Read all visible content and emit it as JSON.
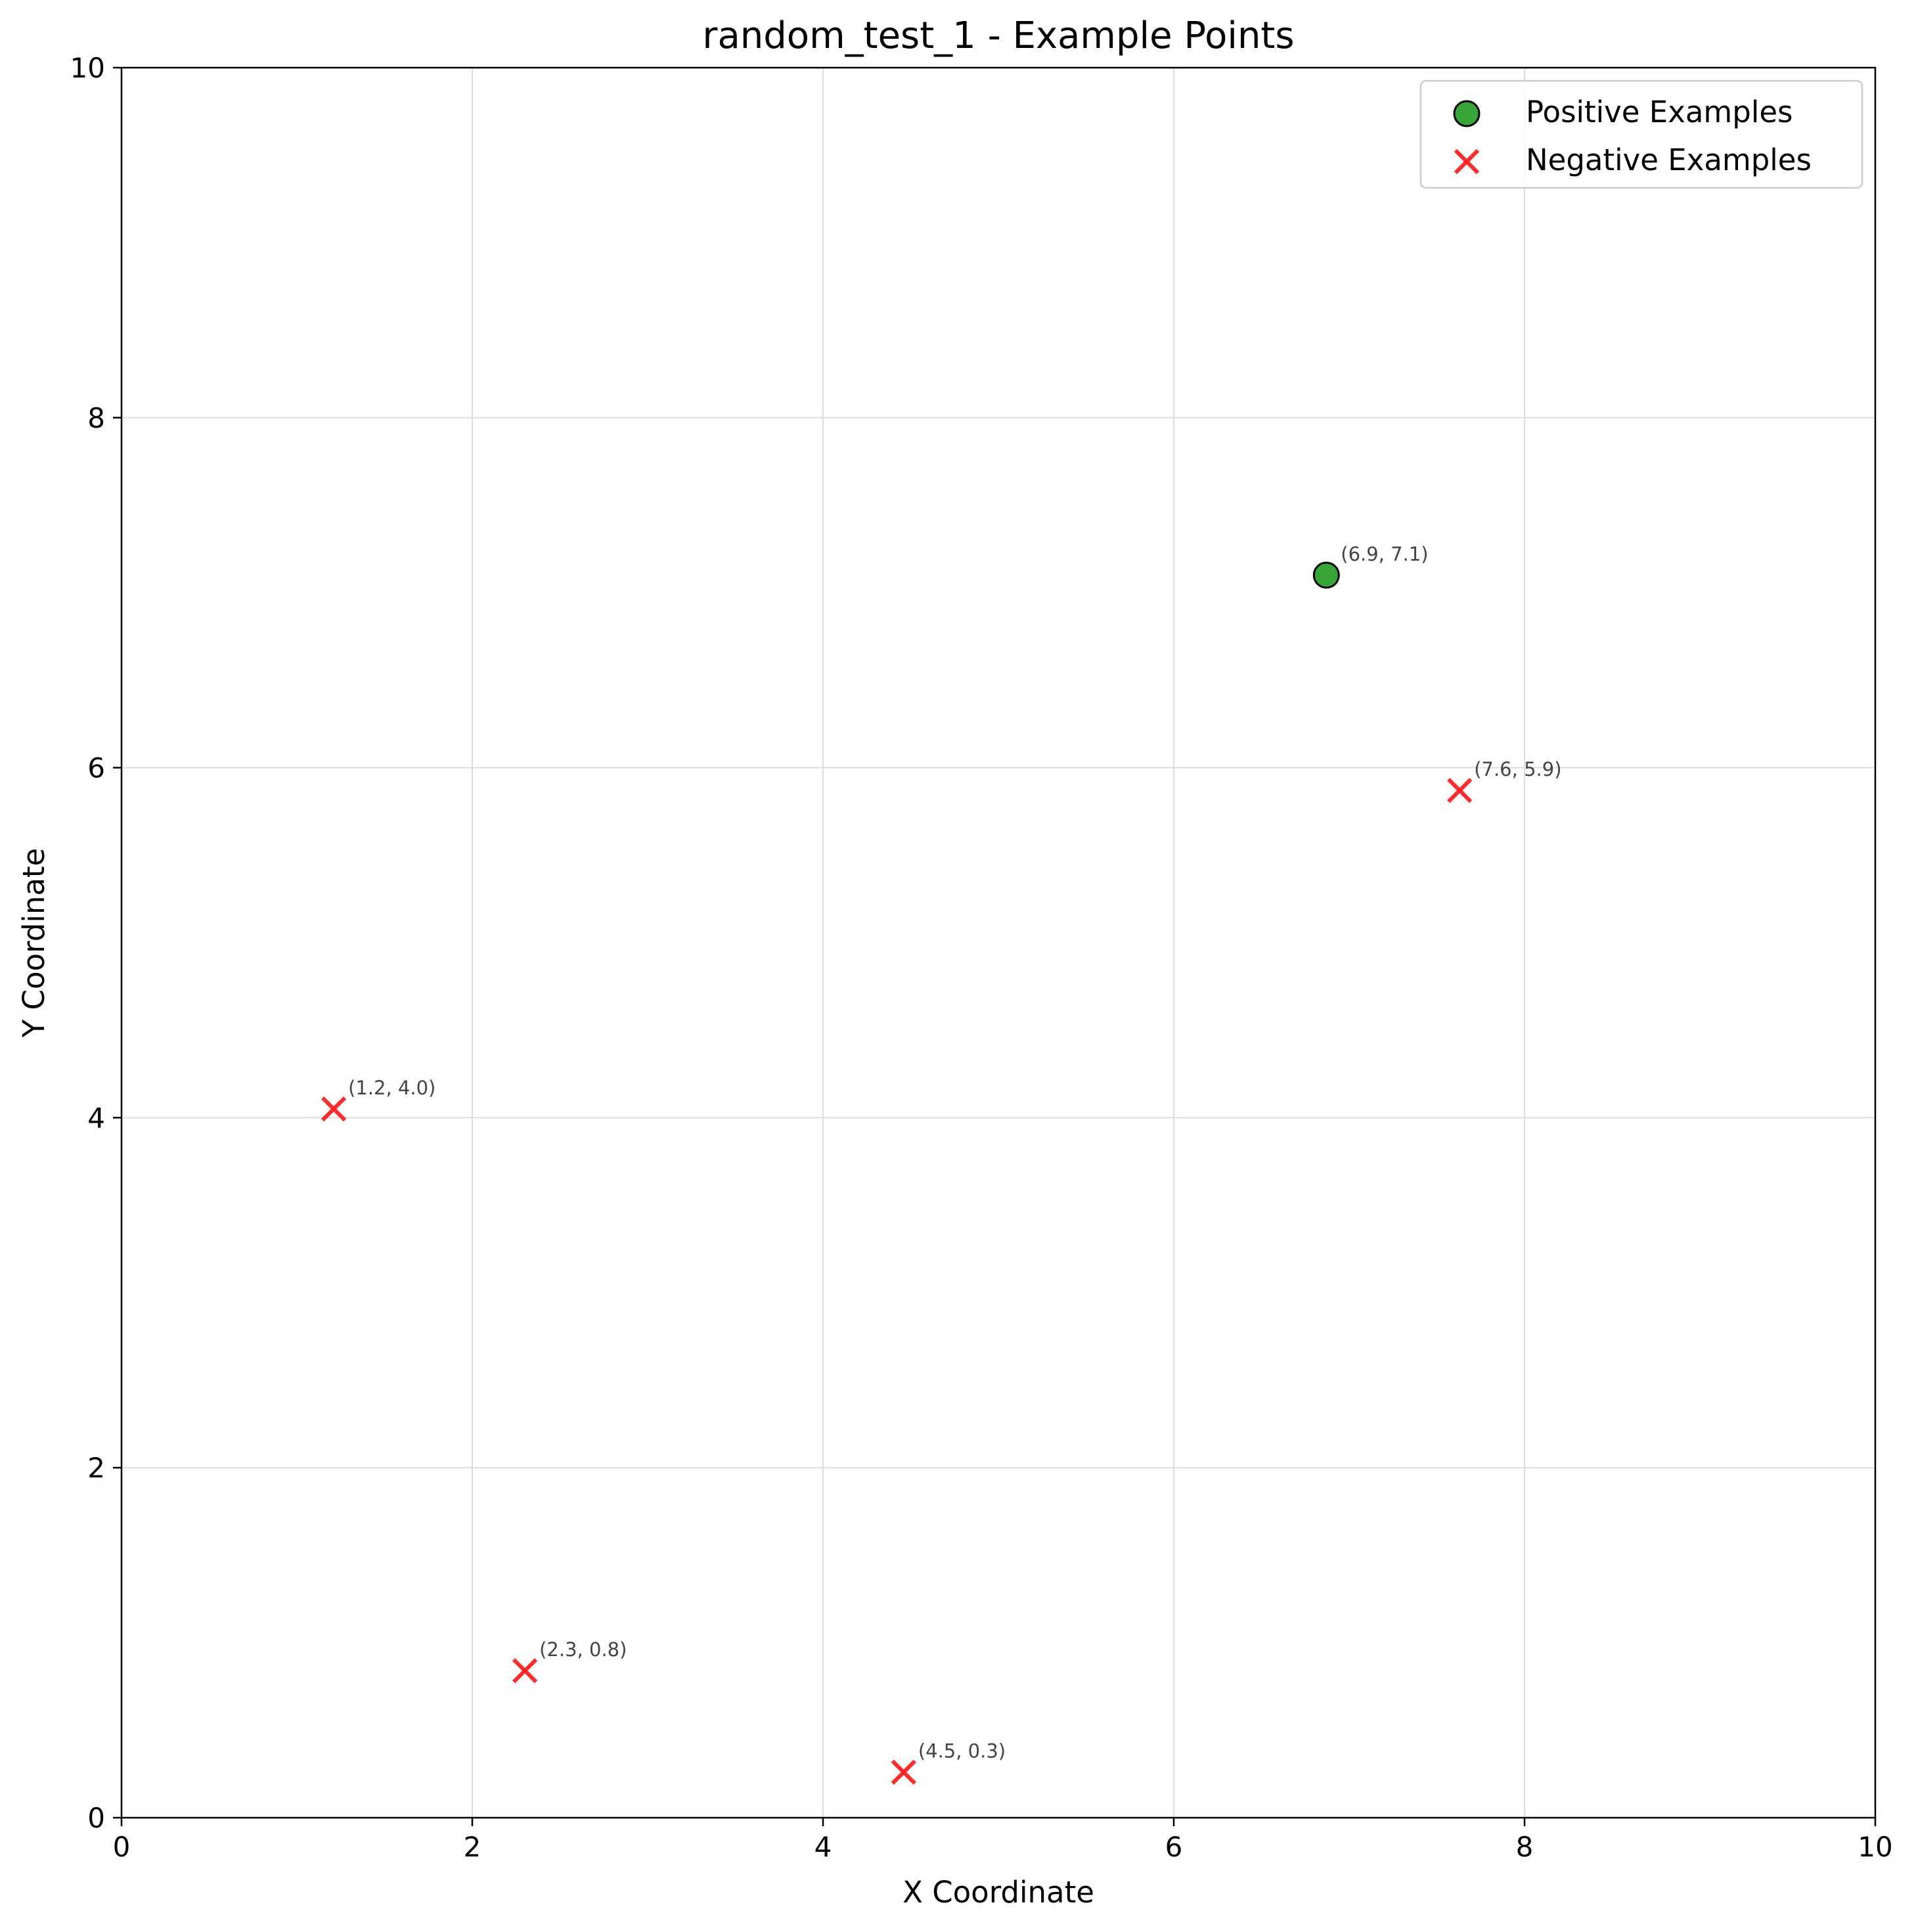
{
  "chart_data": {
    "type": "scatter",
    "title": "random_test_1 - Example Points",
    "xlabel": "X Coordinate",
    "ylabel": "Y Coordinate",
    "xlim": [
      0,
      10
    ],
    "ylim": [
      0,
      10
    ],
    "xticks": [
      "0",
      "2",
      "4",
      "6",
      "8",
      "10"
    ],
    "yticks": [
      "0",
      "2",
      "4",
      "6",
      "8",
      "10"
    ],
    "grid": true,
    "legend_position": "upper right",
    "series": [
      {
        "name": "Positive Examples",
        "marker": "circle",
        "color": "#2ca02c",
        "edge_color": "#000000",
        "points": [
          {
            "x": 6.87,
            "y": 7.1,
            "label": "(6.9, 7.1)"
          }
        ]
      },
      {
        "name": "Negative Examples",
        "marker": "x",
        "color": "#ff2222",
        "points": [
          {
            "x": 7.63,
            "y": 5.87,
            "label": "(7.6, 5.9)"
          },
          {
            "x": 1.21,
            "y": 4.05,
            "label": "(1.2, 4.0)"
          },
          {
            "x": 2.3,
            "y": 0.84,
            "label": "(2.3, 0.8)"
          },
          {
            "x": 4.46,
            "y": 0.26,
            "label": "(4.5, 0.3)"
          }
        ]
      }
    ]
  }
}
